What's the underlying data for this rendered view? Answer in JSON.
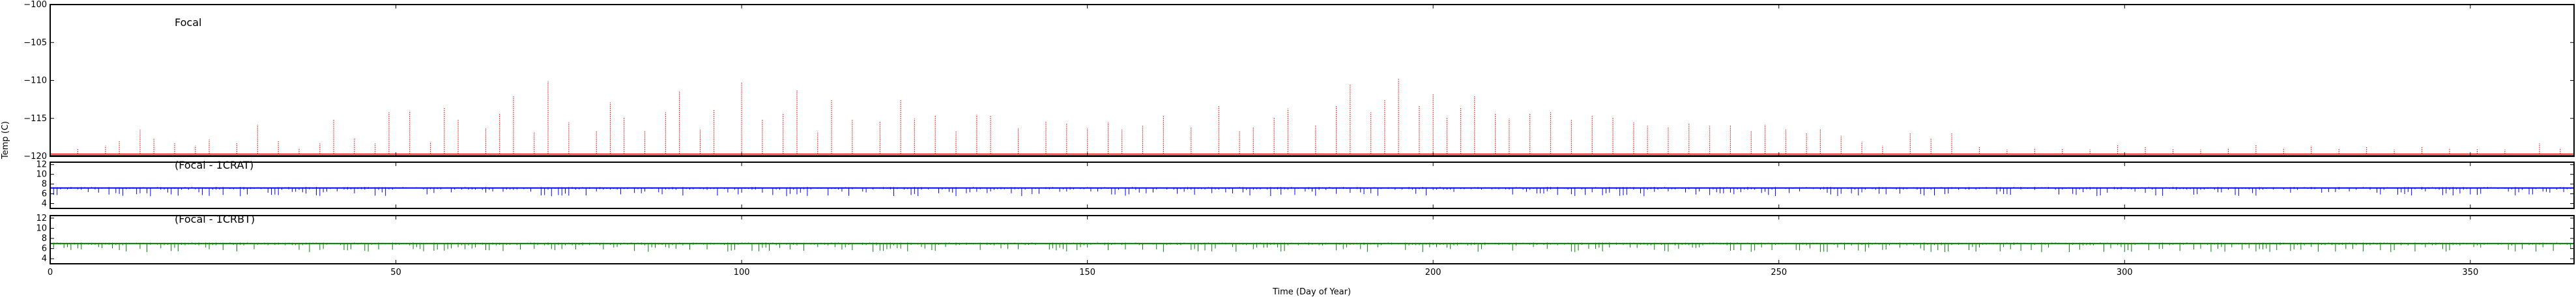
{
  "figure": {
    "xlabel": "Time (Day of Year)",
    "ylabel": "Temp (C)"
  },
  "chart_data": [
    {
      "type": "line",
      "title": "Focal",
      "xlabel": "Time (Day of Year)",
      "ylabel": "Temp (C)",
      "xlim": [
        0,
        365
      ],
      "ylim": [
        -120,
        -100
      ],
      "xticks": [
        0,
        50,
        100,
        150,
        200,
        250,
        300,
        350
      ],
      "yticks": [
        -100,
        -105,
        -110,
        -115,
        -120
      ],
      "grid": false,
      "series": [
        {
          "color": "#ff0000",
          "baseline": -119.7,
          "peaks": [
            {
              "x": 4,
              "y": -119.0
            },
            {
              "x": 8,
              "y": -118.6
            },
            {
              "x": 10,
              "y": -118.0
            },
            {
              "x": 13,
              "y": -116.5
            },
            {
              "x": 15,
              "y": -117.6
            },
            {
              "x": 18,
              "y": -118.2
            },
            {
              "x": 21,
              "y": -118.6
            },
            {
              "x": 23,
              "y": -117.8
            },
            {
              "x": 27,
              "y": -118.2
            },
            {
              "x": 30,
              "y": -115.8
            },
            {
              "x": 33,
              "y": -117.9
            },
            {
              "x": 36,
              "y": -118.9
            },
            {
              "x": 39,
              "y": -118.3
            },
            {
              "x": 41,
              "y": -115.1
            },
            {
              "x": 44,
              "y": -117.6
            },
            {
              "x": 47,
              "y": -118.3
            },
            {
              "x": 49,
              "y": -114.2
            },
            {
              "x": 52,
              "y": -114.0
            },
            {
              "x": 55,
              "y": -118.1
            },
            {
              "x": 57,
              "y": -113.6
            },
            {
              "x": 59,
              "y": -115.2
            },
            {
              "x": 63,
              "y": -116.3
            },
            {
              "x": 65,
              "y": -114.4
            },
            {
              "x": 67,
              "y": -112.1
            },
            {
              "x": 70,
              "y": -116.8
            },
            {
              "x": 72,
              "y": -110.1
            },
            {
              "x": 75,
              "y": -115.5
            },
            {
              "x": 79,
              "y": -116.7
            },
            {
              "x": 81,
              "y": -112.9
            },
            {
              "x": 83,
              "y": -114.8
            },
            {
              "x": 86,
              "y": -116.6
            },
            {
              "x": 89,
              "y": -114.2
            },
            {
              "x": 91,
              "y": -111.4
            },
            {
              "x": 94,
              "y": -116.5
            },
            {
              "x": 96,
              "y": -113.9
            },
            {
              "x": 100,
              "y": -110.2
            },
            {
              "x": 103,
              "y": -115.1
            },
            {
              "x": 106,
              "y": -114.4
            },
            {
              "x": 108,
              "y": -111.3
            },
            {
              "x": 111,
              "y": -116.8
            },
            {
              "x": 113,
              "y": -112.5
            },
            {
              "x": 116,
              "y": -115.2
            },
            {
              "x": 120,
              "y": -115.4
            },
            {
              "x": 123,
              "y": -112.5
            },
            {
              "x": 125,
              "y": -115.0
            },
            {
              "x": 128,
              "y": -114.6
            },
            {
              "x": 131,
              "y": -116.7
            },
            {
              "x": 134,
              "y": -114.5
            },
            {
              "x": 136,
              "y": -114.6
            },
            {
              "x": 140,
              "y": -116.3
            },
            {
              "x": 144,
              "y": -115.4
            },
            {
              "x": 147,
              "y": -115.7
            },
            {
              "x": 150,
              "y": -116.3
            },
            {
              "x": 153,
              "y": -115.5
            },
            {
              "x": 155,
              "y": -116.5
            },
            {
              "x": 158,
              "y": -116.0
            },
            {
              "x": 161,
              "y": -114.7
            },
            {
              "x": 165,
              "y": -116.1
            },
            {
              "x": 169,
              "y": -113.4
            },
            {
              "x": 172,
              "y": -116.7
            },
            {
              "x": 174,
              "y": -116.1
            },
            {
              "x": 177,
              "y": -114.9
            },
            {
              "x": 179,
              "y": -113.7
            },
            {
              "x": 183,
              "y": -115.9
            },
            {
              "x": 186,
              "y": -113.3
            },
            {
              "x": 188,
              "y": -110.5
            },
            {
              "x": 191,
              "y": -114.2
            },
            {
              "x": 193,
              "y": -112.5
            },
            {
              "x": 195,
              "y": -109.8
            },
            {
              "x": 198,
              "y": -113.3
            },
            {
              "x": 200,
              "y": -111.8
            },
            {
              "x": 202,
              "y": -114.8
            },
            {
              "x": 204,
              "y": -113.6
            },
            {
              "x": 206,
              "y": -112.0
            },
            {
              "x": 209,
              "y": -114.3
            },
            {
              "x": 211,
              "y": -115.0
            },
            {
              "x": 214,
              "y": -114.4
            },
            {
              "x": 217,
              "y": -114.2
            },
            {
              "x": 220,
              "y": -115.2
            },
            {
              "x": 223,
              "y": -114.7
            },
            {
              "x": 226,
              "y": -114.8
            },
            {
              "x": 229,
              "y": -115.5
            },
            {
              "x": 231,
              "y": -116.0
            },
            {
              "x": 234,
              "y": -116.2
            },
            {
              "x": 237,
              "y": -115.6
            },
            {
              "x": 240,
              "y": -116.0
            },
            {
              "x": 243,
              "y": -115.9
            },
            {
              "x": 246,
              "y": -116.6
            },
            {
              "x": 248,
              "y": -115.8
            },
            {
              "x": 251,
              "y": -116.5
            },
            {
              "x": 254,
              "y": -116.9
            },
            {
              "x": 256,
              "y": -116.4
            },
            {
              "x": 259,
              "y": -117.3
            },
            {
              "x": 262,
              "y": -118.1
            },
            {
              "x": 265,
              "y": -118.6
            },
            {
              "x": 269,
              "y": -117.0
            },
            {
              "x": 272,
              "y": -117.6
            },
            {
              "x": 275,
              "y": -116.9
            },
            {
              "x": 279,
              "y": -118.8
            },
            {
              "x": 283,
              "y": -119.1
            },
            {
              "x": 287,
              "y": -118.9
            },
            {
              "x": 291,
              "y": -119.0
            },
            {
              "x": 295,
              "y": -119.1
            },
            {
              "x": 299,
              "y": -118.5
            },
            {
              "x": 303,
              "y": -118.8
            },
            {
              "x": 307,
              "y": -119.0
            },
            {
              "x": 311,
              "y": -119.1
            },
            {
              "x": 315,
              "y": -118.9
            },
            {
              "x": 319,
              "y": -118.5
            },
            {
              "x": 323,
              "y": -118.9
            },
            {
              "x": 327,
              "y": -118.6
            },
            {
              "x": 331,
              "y": -119.0
            },
            {
              "x": 335,
              "y": -118.8
            },
            {
              "x": 339,
              "y": -119.1
            },
            {
              "x": 343,
              "y": -118.8
            },
            {
              "x": 347,
              "y": -118.9
            },
            {
              "x": 351,
              "y": -119.0
            },
            {
              "x": 355,
              "y": -119.1
            },
            {
              "x": 360,
              "y": -118.3
            },
            {
              "x": 363,
              "y": -118.9
            }
          ]
        },
        {
          "color": "#000000",
          "baseline": -119.9,
          "peaks": []
        }
      ]
    },
    {
      "type": "scatter",
      "title": "(Focal - 1CRAT)",
      "xlim": [
        0,
        365
      ],
      "ylim": [
        3,
        12.5
      ],
      "xticks": [
        0,
        50,
        100,
        150,
        200,
        250,
        300,
        350
      ],
      "yticks": [
        4,
        6,
        8,
        10,
        12
      ],
      "grid": false,
      "series": [
        {
          "color": "#0000ff",
          "baseline": 7.2,
          "dip_to": 5.5
        }
      ]
    },
    {
      "type": "scatter",
      "title": "(Focal - 1CRBT)",
      "xlim": [
        0,
        365
      ],
      "ylim": [
        3,
        12.5
      ],
      "xticks": [
        0,
        50,
        100,
        150,
        200,
        250,
        300,
        350
      ],
      "yticks": [
        4,
        6,
        8,
        10,
        12
      ],
      "grid": false,
      "series": [
        {
          "color": "#008000",
          "baseline": 7.0,
          "dip_to": 5.3
        }
      ]
    }
  ]
}
